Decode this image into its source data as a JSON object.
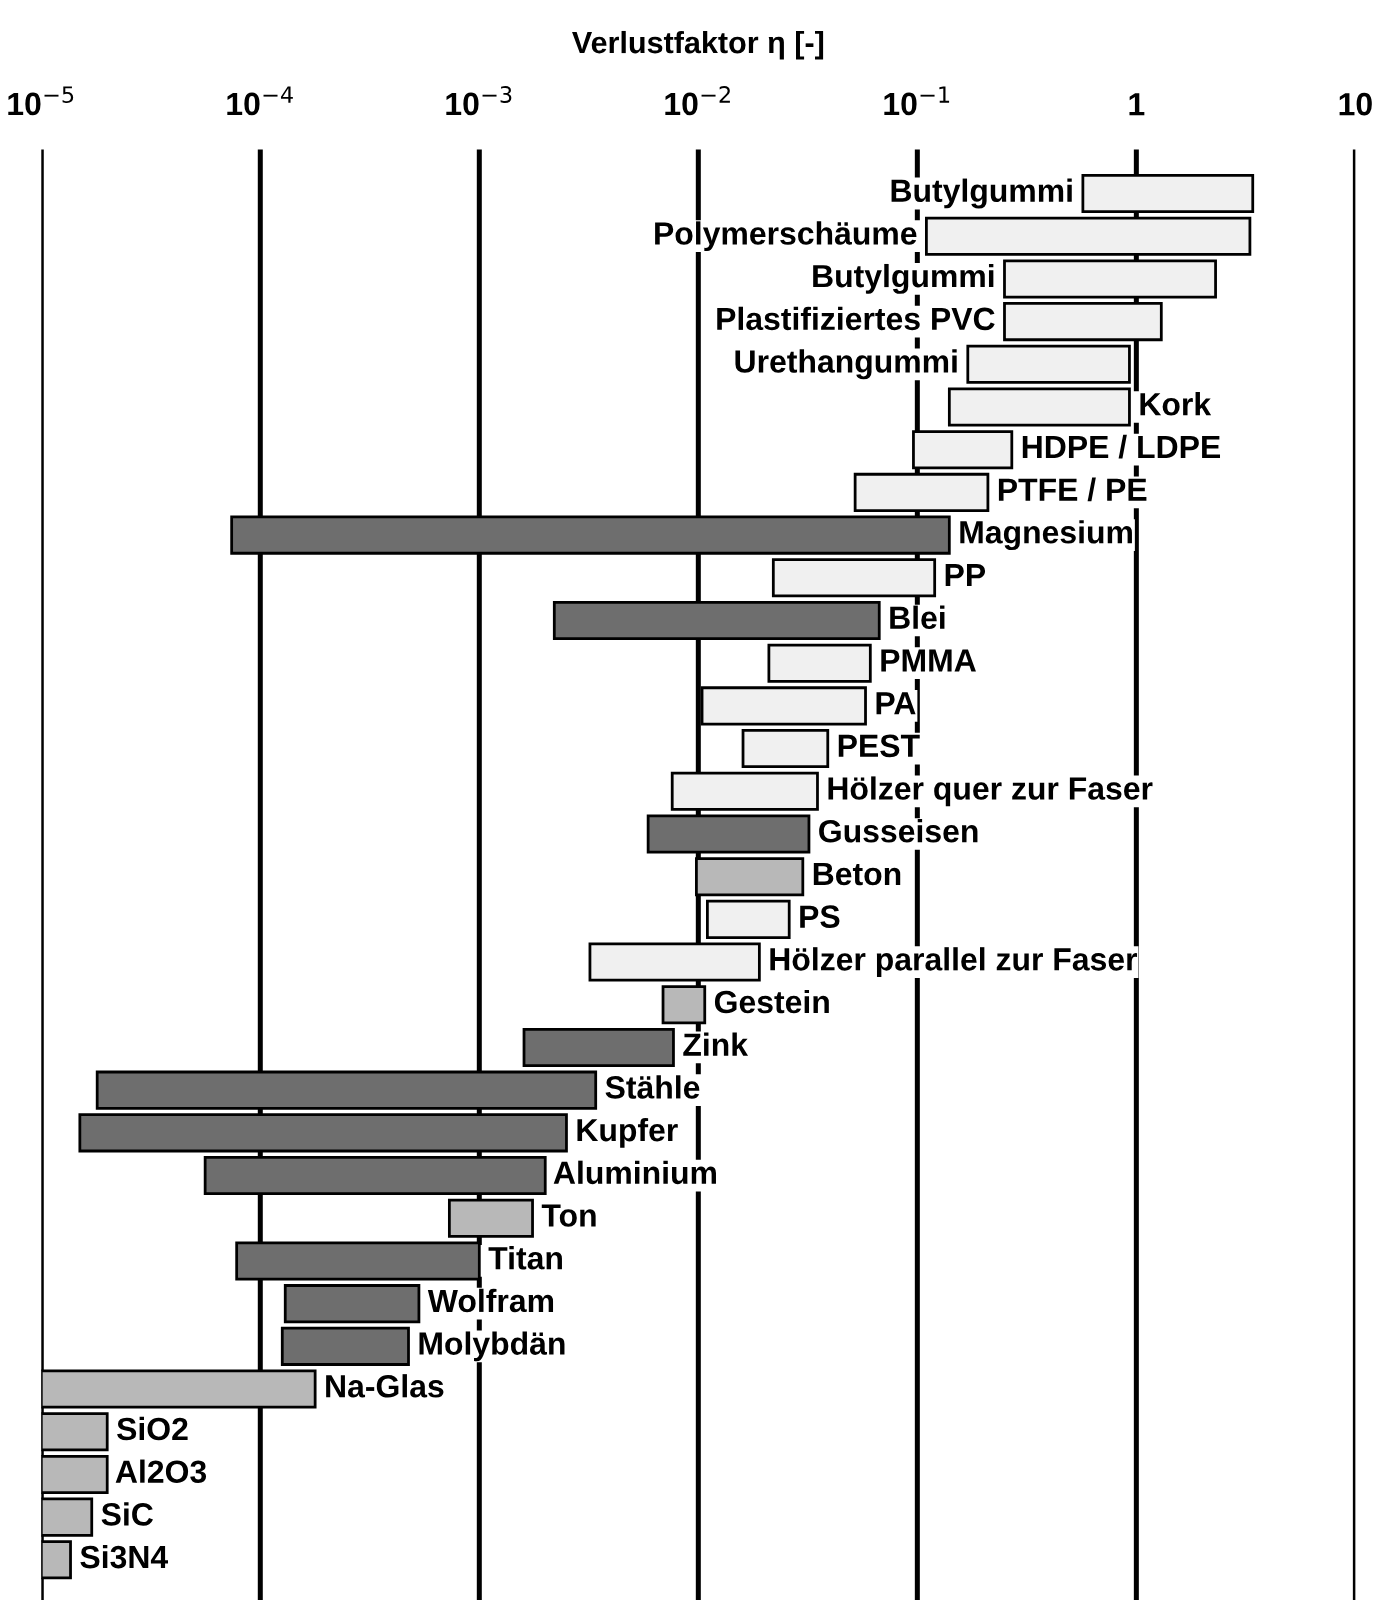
{
  "chart_data": {
    "type": "bar",
    "orientation": "horizontal",
    "xlabel": "Verlustfaktor η [-]",
    "log": "x",
    "grid": "x",
    "tick_labels": "x",
    "xlim": [
      1e-05,
      10
    ],
    "xticks": [
      {
        "value": 1e-05,
        "label": "10$^{−5}$"
      },
      {
        "value": 0.0001,
        "label": "10$^{−4}$"
      },
      {
        "value": 0.001,
        "label": "10$^{−3}$"
      },
      {
        "value": 0.01,
        "label": "10$^{−2}$"
      },
      {
        "value": 0.1,
        "label": "10$^{−1}$"
      },
      1,
      10
    ],
    "categories": [
      "Butylgummi",
      "Polymerschäume",
      "Butylgummi",
      "Plastifiziertes PVC",
      "Urethangummi",
      "Kork",
      "HDPE / LDPE",
      "PTFE / PE",
      "Magnesium",
      "PP",
      "Blei",
      "PMMA",
      "PA",
      "PEST",
      "Hölzer quer zur Faser",
      "Gusseisen",
      "Beton",
      "PS",
      "Hölzer parallel zur Faser",
      "Gestein",
      "Zink",
      "Stähle",
      "Kupfer",
      "Aluminium",
      "Ton",
      "Titan",
      "Wolfram",
      "Molybdän",
      "Na-Glas",
      "SiO2",
      "Al2O3",
      "SiC",
      "Si3N4"
    ],
    "base": [
      0.57,
      0.11,
      0.25,
      0.25,
      0.17,
      0.14,
      0.096,
      0.052,
      7.4e-05,
      0.022,
      0.0022,
      0.021,
      0.0104,
      0.016,
      0.0076,
      0.0059,
      0.0098,
      0.011,
      0.0032,
      0.0069,
      0.0016,
      1.8e-05,
      1.5e-05,
      5.6e-05,
      0.00073,
      7.8e-05,
      0.00013,
      0.000126,
      1e-05,
      1e-05,
      1e-05,
      1e-05,
      1e-05
    ],
    "values": [
      2.83,
      3.19,
      2.05,
      1.05,
      0.76,
      0.79,
      0.174,
      0.158,
      0.1399,
      0.098,
      0.0648,
      0.04,
      0.0476,
      0.023,
      0.0274,
      0.0261,
      0.0202,
      0.015,
      0.0158,
      0.0038,
      0.0061,
      0.003382,
      0.002485,
      0.001944,
      0.00102,
      0.000922,
      0.0004,
      0.000349,
      0.000168,
      1e-05,
      1e-05,
      7e-06,
      3.6e-06
    ],
    "colors": [
      "#f0f0f0",
      "#f0f0f0",
      "#f0f0f0",
      "#f0f0f0",
      "#f0f0f0",
      "#f0f0f0",
      "#f0f0f0",
      "#f0f0f0",
      "#6e6e6e",
      "#f0f0f0",
      "#6e6e6e",
      "#f0f0f0",
      "#f0f0f0",
      "#f0f0f0",
      "#f0f0f0",
      "#6e6e6e",
      "#b8b8b8",
      "#f0f0f0",
      "#f0f0f0",
      "#b8b8b8",
      "#6e6e6e",
      "#6e6e6e",
      "#6e6e6e",
      "#6e6e6e",
      "#b8b8b8",
      "#6e6e6e",
      "#6e6e6e",
      "#6e6e6e",
      "#b8b8b8",
      "#b8b8b8",
      "#b8b8b8",
      "#b8b8b8",
      "#b8b8b8"
    ]
  }
}
